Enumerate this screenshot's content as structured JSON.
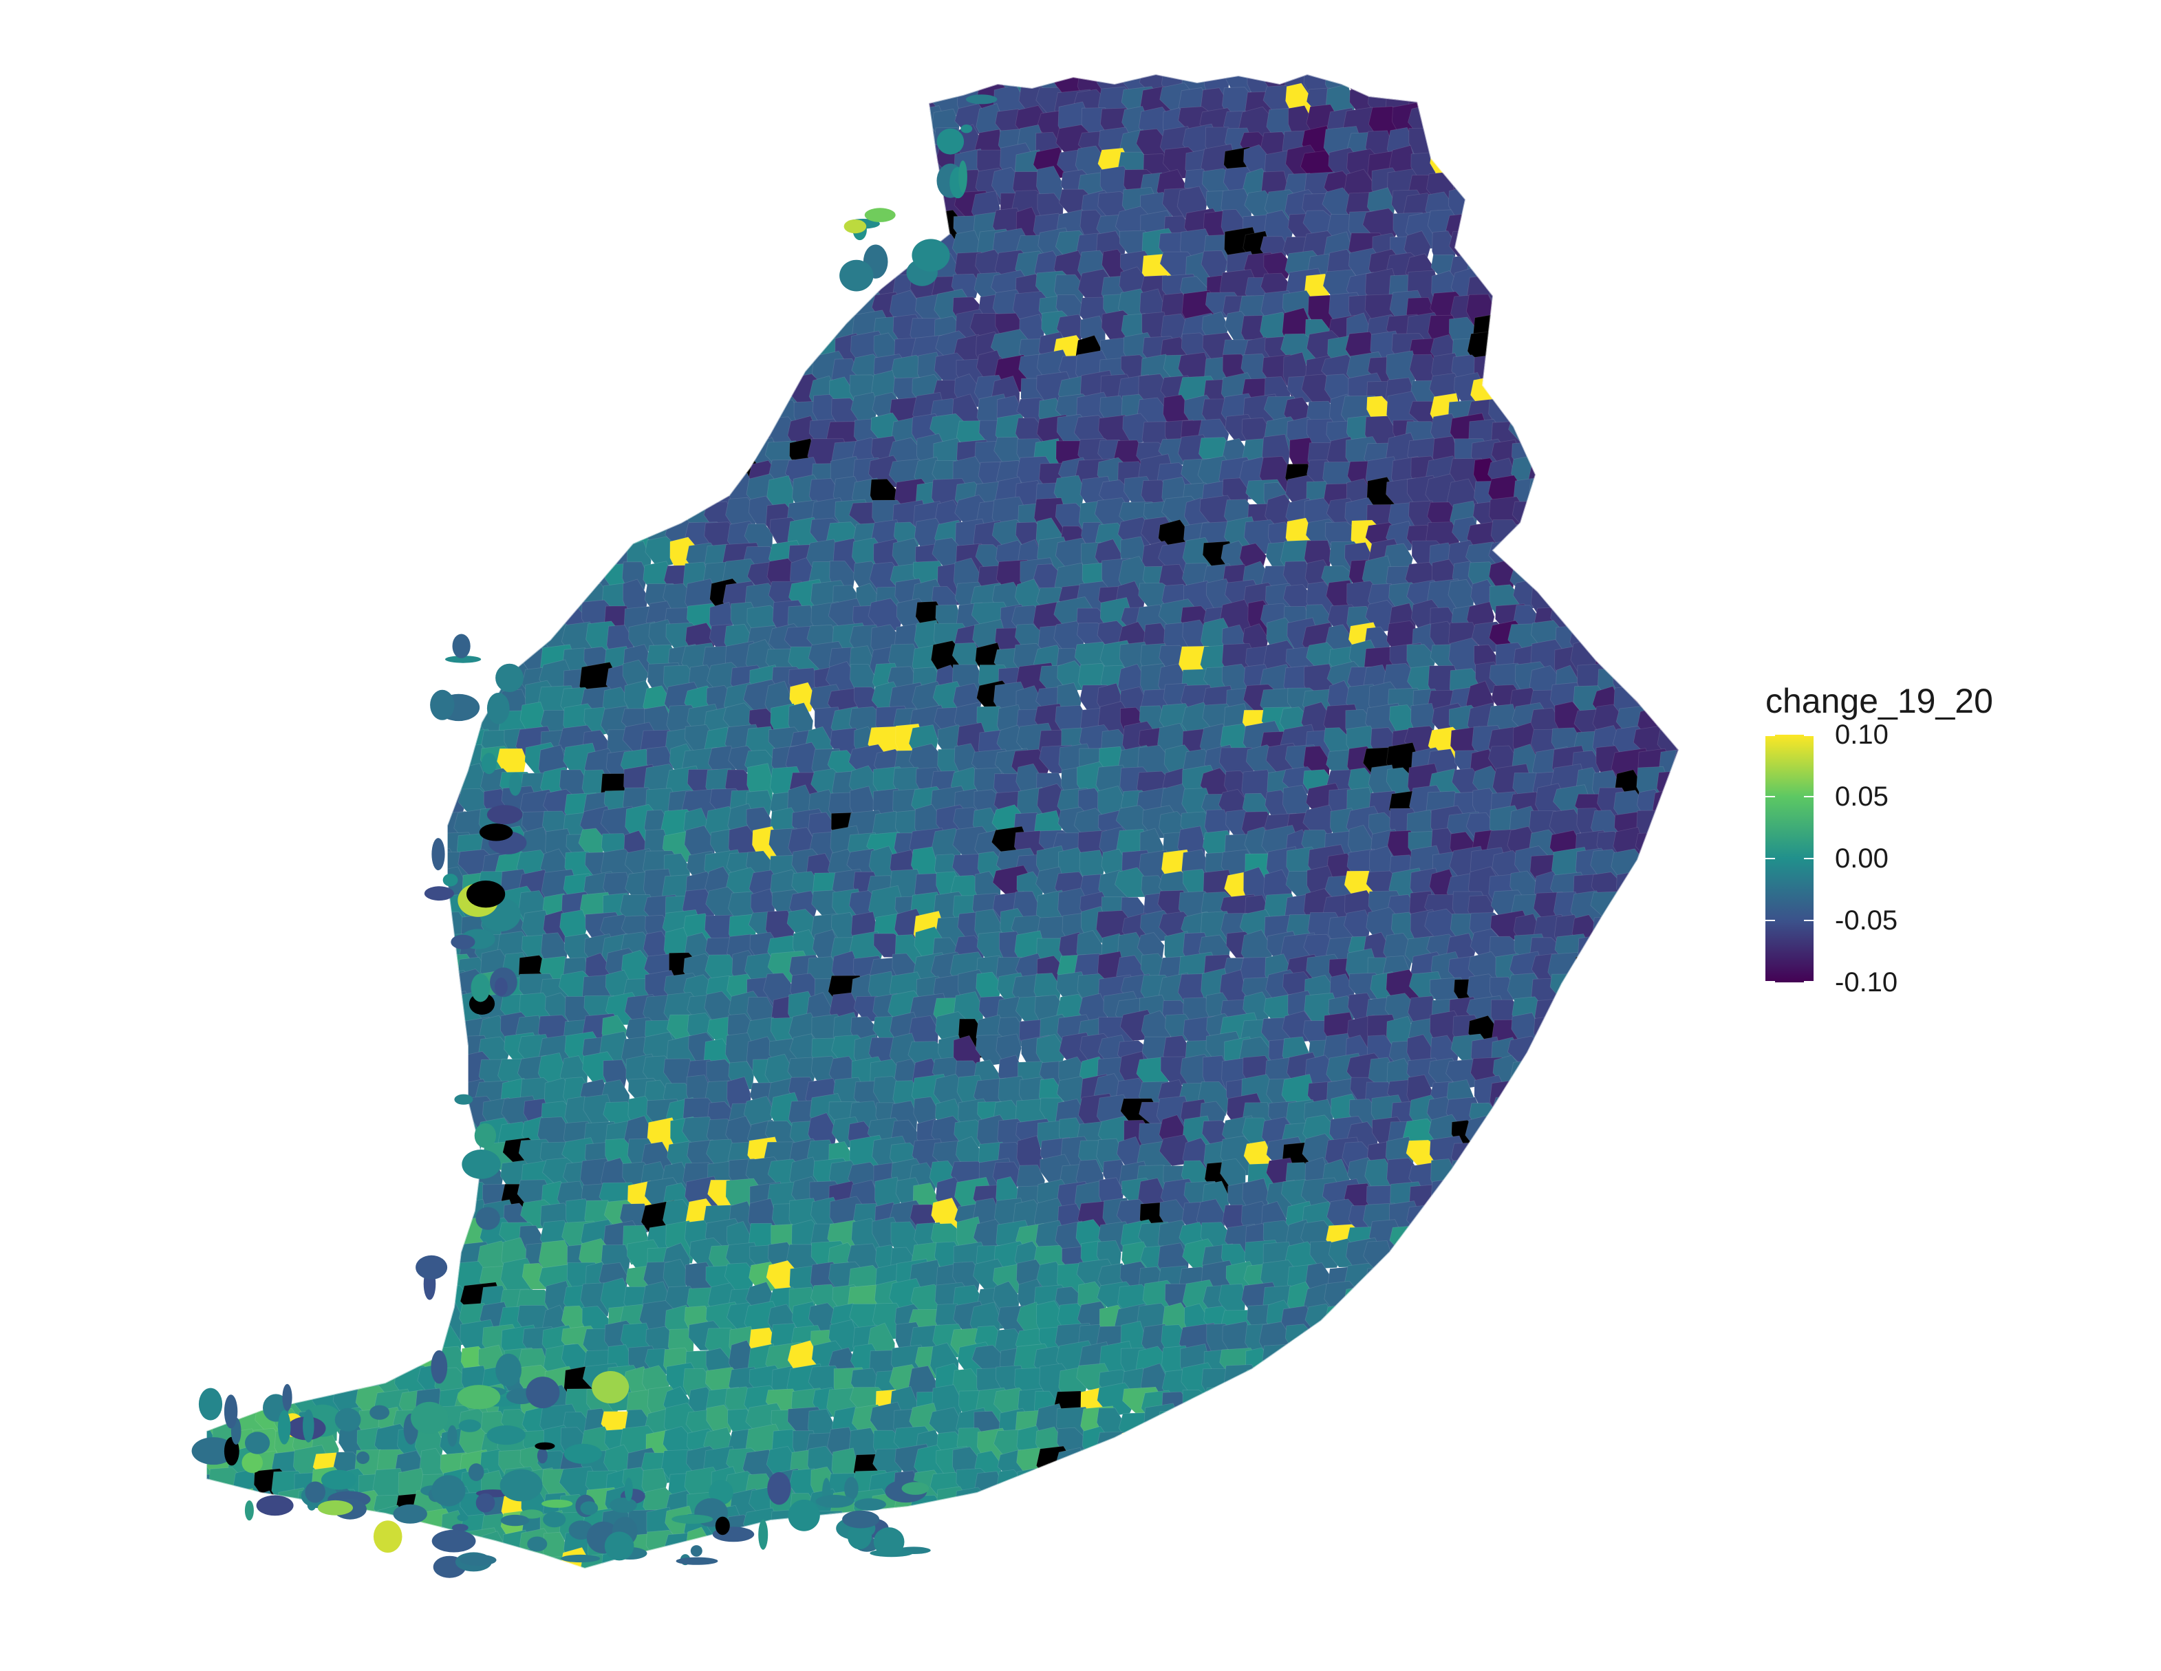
{
  "map": {
    "fill_variable": "change_19_20",
    "region_style": "choropleth of postal-code areas",
    "missing_value_color": "#000000"
  },
  "legend": {
    "title": "change_19_20",
    "scale": "viridis",
    "range": [
      -0.1,
      0.1
    ],
    "ticks": [
      {
        "label": "0.10",
        "value": 0.1
      },
      {
        "label": "0.05",
        "value": 0.05
      },
      {
        "label": "0.00",
        "value": 0.0
      },
      {
        "label": "-0.05",
        "value": -0.05
      },
      {
        "label": "-0.10",
        "value": -0.1
      }
    ],
    "colors": [
      "#440154",
      "#3b528b",
      "#21908c",
      "#5dc863",
      "#fde725"
    ]
  }
}
